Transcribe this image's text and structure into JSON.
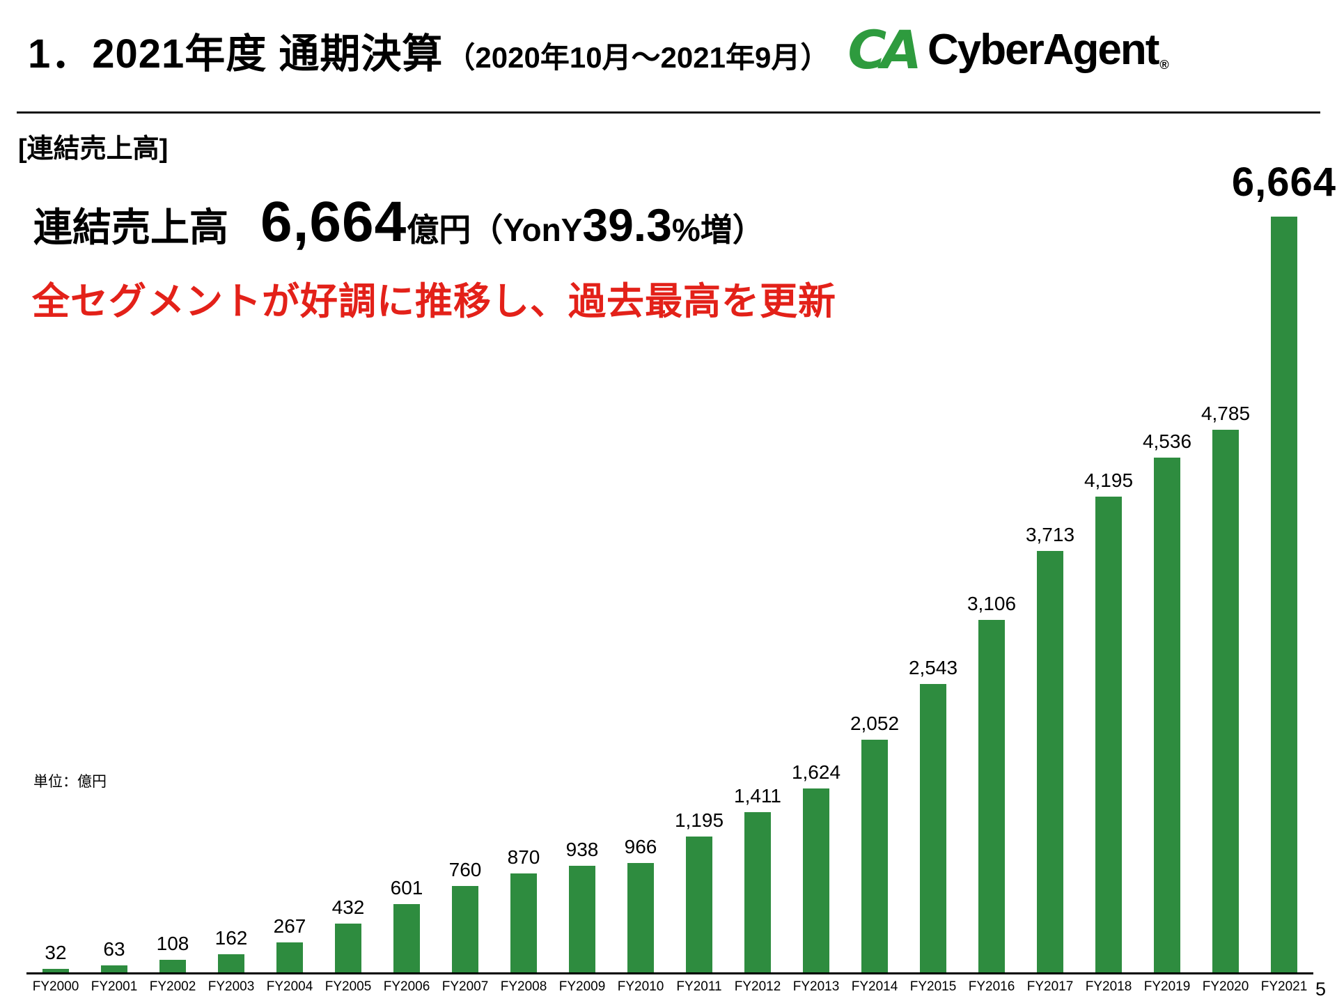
{
  "header": {
    "title_main": "1．2021年度 通期決算",
    "title_sub": "（2020年10月～2021年9月）",
    "logo_mark": "CA",
    "logo_text": "CyberAgent",
    "logo_reg": "®"
  },
  "section_label": "[連結売上高]",
  "headline": {
    "label": "連結売上高",
    "value": "6,664",
    "unit": "億円",
    "yoy_prefix": "（YonY",
    "yoy_value": "39.3",
    "yoy_suffix": "%増）"
  },
  "subheadline": "全セグメントが好調に推移し、過去最高を更新",
  "unit_note": "単位：億円",
  "page_number": "5",
  "colors": {
    "bar_green": "#2e8c3f",
    "logo_green": "#2e9b3e",
    "accent_red": "#e32119"
  },
  "chart_data": {
    "type": "bar",
    "title": "連結売上高（FY2000〜FY2021）",
    "xlabel": "",
    "ylabel": "億円",
    "unit": "億円",
    "grid": false,
    "legend": false,
    "ylim": [
      0,
      6664
    ],
    "bar_color": "#2e8c3f",
    "categories": [
      "FY2000",
      "FY2001",
      "FY2002",
      "FY2003",
      "FY2004",
      "FY2005",
      "FY2006",
      "FY2007",
      "FY2008",
      "FY2009",
      "FY2010",
      "FY2011",
      "FY2012",
      "FY2013",
      "FY2014",
      "FY2015",
      "FY2016",
      "FY2017",
      "FY2018",
      "FY2019",
      "FY2020",
      "FY2021"
    ],
    "values": [
      32,
      63,
      108,
      162,
      267,
      432,
      601,
      760,
      870,
      938,
      966,
      1195,
      1411,
      1624,
      2052,
      2543,
      3106,
      3713,
      4195,
      4536,
      4785,
      6664
    ],
    "labels": [
      "32",
      "63",
      "108",
      "162",
      "267",
      "432",
      "601",
      "760",
      "870",
      "938",
      "966",
      "1,195",
      "1,411",
      "1,624",
      "2,052",
      "2,543",
      "3,106",
      "3,713",
      "4,195",
      "4,536",
      "4,785",
      "6,664"
    ]
  }
}
